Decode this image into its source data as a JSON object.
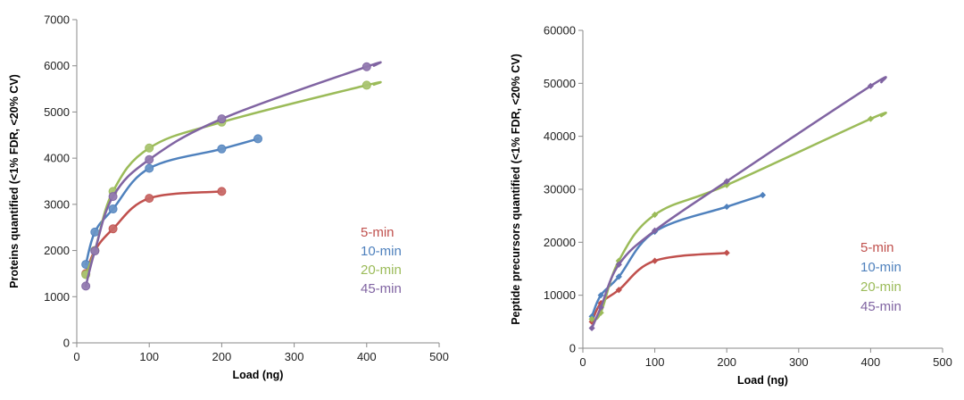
{
  "chart_data": [
    {
      "type": "line",
      "title": "",
      "xlabel": "Load (ng)",
      "ylabel": "Proteins quantified (<1% FDR, <20% CV)",
      "xlim": [
        0,
        500
      ],
      "ylim": [
        0,
        7000
      ],
      "xticks": [
        0,
        100,
        200,
        300,
        400,
        500
      ],
      "yticks": [
        0,
        1000,
        2000,
        3000,
        4000,
        5000,
        6000,
        7000
      ],
      "grid": false,
      "marker": "circle",
      "legend_position": "right",
      "series": [
        {
          "name": "5-min",
          "color": "#c0504d",
          "x": [
            12.5,
            25,
            50,
            100,
            200
          ],
          "y": [
            1500,
            2000,
            2470,
            3130,
            3280
          ]
        },
        {
          "name": "10-min",
          "color": "#4f81bd",
          "x": [
            12.5,
            25,
            50,
            100,
            200,
            250
          ],
          "y": [
            1700,
            2400,
            2900,
            3780,
            4200,
            4420
          ]
        },
        {
          "name": "20-min",
          "color": "#9bbb59",
          "x": [
            12.5,
            25,
            50,
            100,
            200,
            400,
            410
          ],
          "y": [
            1480,
            2000,
            3280,
            4220,
            4780,
            5580,
            5590
          ]
        },
        {
          "name": "45-min",
          "color": "#8064a2",
          "x": [
            12.5,
            25,
            50,
            100,
            200,
            400,
            410
          ],
          "y": [
            1230,
            1990,
            3170,
            3970,
            4850,
            5980,
            6000
          ]
        }
      ]
    },
    {
      "type": "line",
      "title": "",
      "xlabel": "Load (ng)",
      "ylabel": "Peptide precursors quantified (<1% FDR, <20% CV)",
      "xlim": [
        0,
        500
      ],
      "ylim": [
        0,
        60000
      ],
      "xticks": [
        0,
        100,
        200,
        300,
        400,
        500
      ],
      "yticks": [
        0,
        10000,
        20000,
        30000,
        40000,
        50000,
        60000
      ],
      "grid": false,
      "marker": "diamond",
      "legend_position": "right",
      "series": [
        {
          "name": "5-min",
          "color": "#c0504d",
          "x": [
            12.5,
            25,
            50,
            100,
            200
          ],
          "y": [
            5000,
            8500,
            11000,
            16500,
            18000
          ]
        },
        {
          "name": "10-min",
          "color": "#4f81bd",
          "x": [
            12.5,
            25,
            50,
            100,
            200,
            250
          ],
          "y": [
            6000,
            10000,
            13500,
            22000,
            26700,
            28900
          ]
        },
        {
          "name": "20-min",
          "color": "#9bbb59",
          "x": [
            12.5,
            25,
            50,
            100,
            200,
            400,
            415
          ],
          "y": [
            5500,
            6700,
            16500,
            25200,
            30800,
            43300,
            43800
          ]
        },
        {
          "name": "45-min",
          "color": "#8064a2",
          "x": [
            12.5,
            25,
            50,
            100,
            200,
            400,
            415
          ],
          "y": [
            3800,
            7700,
            15800,
            22200,
            31500,
            49500,
            50200
          ]
        }
      ]
    }
  ]
}
